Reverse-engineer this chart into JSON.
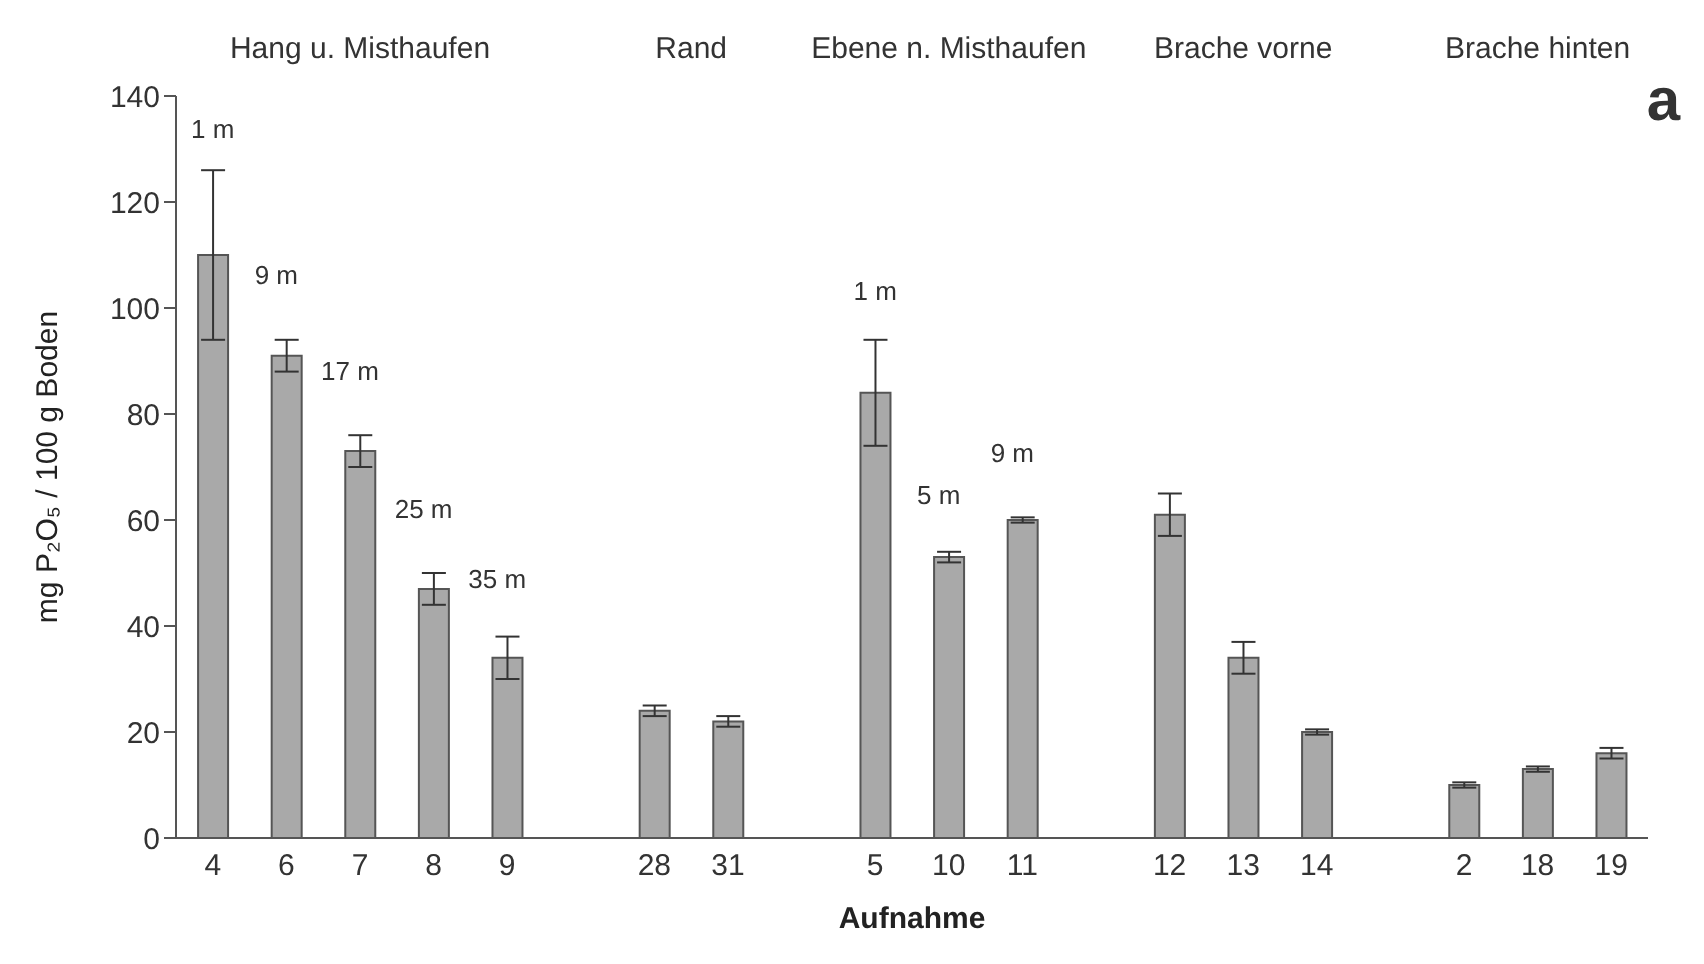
{
  "chart_data": {
    "type": "bar",
    "xlabel": "Aufnahme",
    "ylabel": "mg P₂O₅ / 100 g Boden",
    "categories": [
      "4",
      "6",
      "7",
      "8",
      "9",
      null,
      "28",
      "31",
      null,
      "5",
      "10",
      "11",
      null,
      "12",
      "13",
      "14",
      null,
      "2",
      "18",
      "19"
    ],
    "values": [
      110,
      91,
      73,
      47,
      34,
      null,
      24,
      22,
      null,
      84,
      53,
      60,
      null,
      61,
      34,
      20,
      null,
      10,
      13,
      16
    ],
    "errors": [
      16,
      3,
      3,
      3,
      4,
      null,
      1,
      1,
      null,
      10,
      1,
      0.5,
      null,
      4,
      3,
      0.5,
      null,
      0.5,
      0.5,
      1
    ],
    "color": "#a9a9a9",
    "ylim": [
      0,
      140
    ],
    "yticks": [
      0,
      20,
      40,
      60,
      80,
      100,
      120,
      140
    ],
    "grid": false,
    "legend": false,
    "annotations": [
      "Hang u. Misthaufen",
      "Rand",
      "Ebene n. Misthaufen",
      "Brache vorne",
      "Brache hinten",
      "a",
      "1 m",
      "9 m",
      "17 m",
      "25 m",
      "35 m",
      "1 m",
      "5 m",
      "9 m"
    ]
  }
}
